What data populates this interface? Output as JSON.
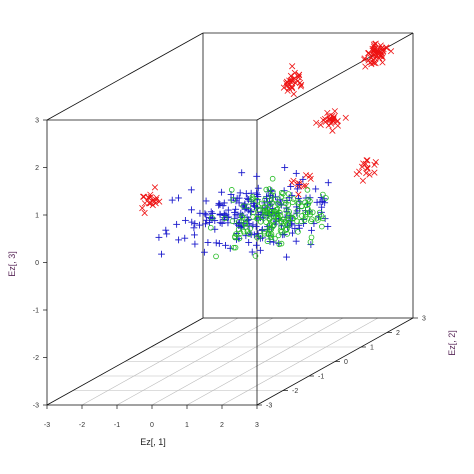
{
  "chart_data": {
    "type": "scatter",
    "projection": "3d",
    "title": "",
    "xlabel": "Ez[, 1]",
    "ylabel": "Ez[, 2]",
    "zlabel": "Ez[, 3]",
    "xlim": [
      -3,
      3
    ],
    "ylim": [
      -3,
      3
    ],
    "zlim": [
      -3,
      3
    ],
    "x_ticks": [
      "-3",
      "-2",
      "-1",
      "0",
      "1",
      "2",
      "3"
    ],
    "y_ticks": [
      "-3",
      "-2",
      "-1",
      "0",
      "1",
      "2",
      "3"
    ],
    "z_ticks": [
      "-3",
      "-2",
      "-1",
      "0",
      "1",
      "2",
      "3"
    ],
    "grid": "floor",
    "legend": "none",
    "colors": {
      "red": "#ee1111",
      "blue": "#1a1acc",
      "green": "#22bb22",
      "box": "#111111",
      "grid": "#bbbbbb"
    },
    "series": [
      {
        "marker": "x",
        "color": "#ee1111",
        "clusters": [
          {
            "center": [
              1.0,
              1.1,
              2.5
            ],
            "count": 30
          },
          {
            "center": [
              2.7,
              2.0,
              2.9
            ],
            "count": 55
          },
          {
            "center": [
              3.0,
              -0.1,
              2.1
            ],
            "count": 25
          },
          {
            "center": [
              -1.9,
              -0.5,
              0.55
            ],
            "count": 20
          },
          {
            "center": [
              2.0,
              0.0,
              0.8
            ],
            "count": 12
          },
          {
            "center": [
              2.7,
              1.6,
              0.6
            ],
            "count": 15
          }
        ]
      },
      {
        "marker": "+",
        "color": "#1a1acc",
        "clusters": [
          {
            "center": [
              0.75,
              0.0,
              0.1
            ],
            "count": 240
          }
        ]
      },
      {
        "marker": "o",
        "color": "#22bb22",
        "clusters": [
          {
            "center": [
              1.1,
              0.2,
              -0.05
            ],
            "count": 170
          }
        ]
      }
    ]
  }
}
